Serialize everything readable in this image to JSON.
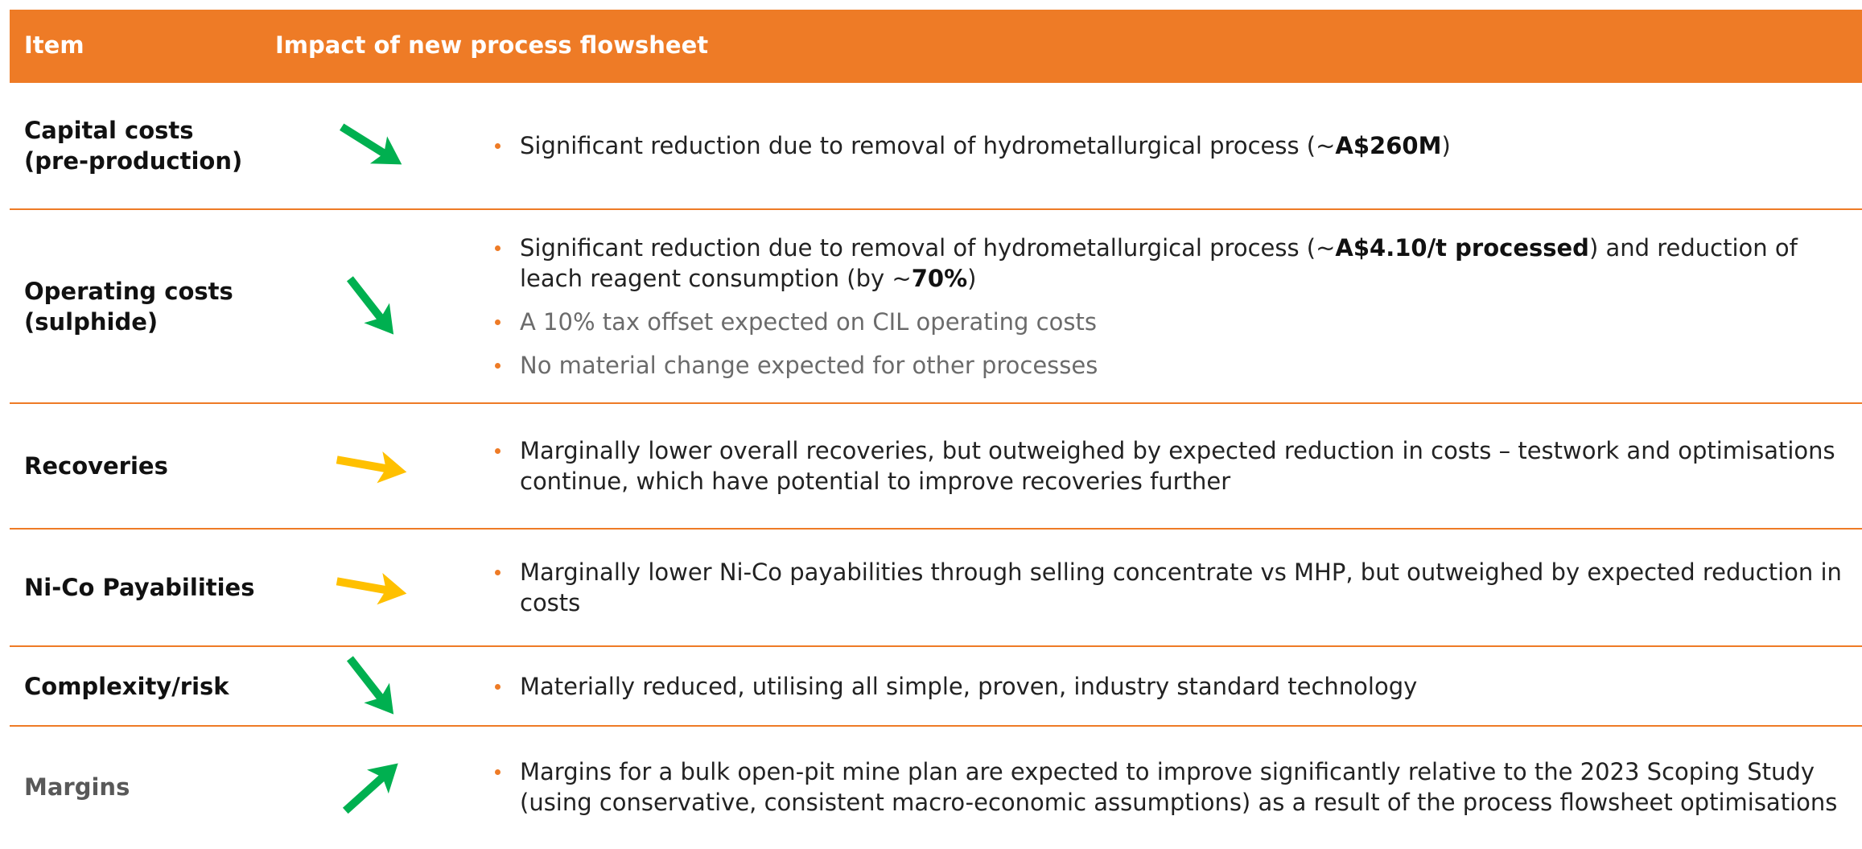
{
  "header": {
    "item": "Item",
    "impact": "Impact of new process flowsheet"
  },
  "rows": [
    {
      "item": "Capital costs\n(pre-production)",
      "arrow": {
        "direction": "down",
        "color": "#00b050"
      },
      "bullets": [
        {
          "segments": [
            {
              "text": "Significant reduction due to removal of hydrometallurgical process (~"
            },
            {
              "text": "A$260M",
              "bold": true
            },
            {
              "text": ")"
            }
          ]
        }
      ]
    },
    {
      "item": "Operating costs\n(sulphide)",
      "arrow": {
        "direction": "steep-down",
        "color": "#00b050"
      },
      "bullets": [
        {
          "segments": [
            {
              "text": "Significant reduction due to removal of hydrometallurgical process (~"
            },
            {
              "text": "A$4.10/t processed",
              "bold": true
            },
            {
              "text": ") and reduction of leach reagent consumption (by ~"
            },
            {
              "text": "70%",
              "bold": true
            },
            {
              "text": ")"
            }
          ]
        },
        {
          "muted": true,
          "segments": [
            {
              "text": "A 10% tax offset expected on CIL operating costs"
            }
          ]
        },
        {
          "muted": true,
          "segments": [
            {
              "text": "No material change expected for other processes"
            }
          ]
        }
      ]
    },
    {
      "item": "Recoveries",
      "arrow": {
        "direction": "flat",
        "color": "#ffc000"
      },
      "bullets": [
        {
          "segments": [
            {
              "text": "Marginally lower overall recoveries, but outweighed by expected reduction in costs – testwork and optimisations continue, which have potential to improve recoveries further"
            }
          ]
        }
      ]
    },
    {
      "item": "Ni-Co Payabilities",
      "arrow": {
        "direction": "flat",
        "color": "#ffc000"
      },
      "bullets": [
        {
          "segments": [
            {
              "text": "Marginally lower Ni-Co payabilities through selling concentrate vs MHP, but outweighed by expected reduction in costs"
            }
          ]
        }
      ]
    },
    {
      "item": "Complexity/risk",
      "arrow": {
        "direction": "steep-down",
        "color": "#00b050"
      },
      "bullets": [
        {
          "segments": [
            {
              "text": "Materially reduced, utilising all simple, proven, industry standard technology"
            }
          ]
        }
      ]
    },
    {
      "item": "Margins",
      "muted": true,
      "arrow": {
        "direction": "up",
        "color": "#00b050"
      },
      "bullets": [
        {
          "segments": [
            {
              "text": "Margins for a bulk open-pit mine plan are expected to improve significantly relative to the 2023 Scoping Study (using conservative, consistent macro-economic assumptions) as a result of the process flowsheet optimisations"
            }
          ]
        }
      ]
    }
  ]
}
